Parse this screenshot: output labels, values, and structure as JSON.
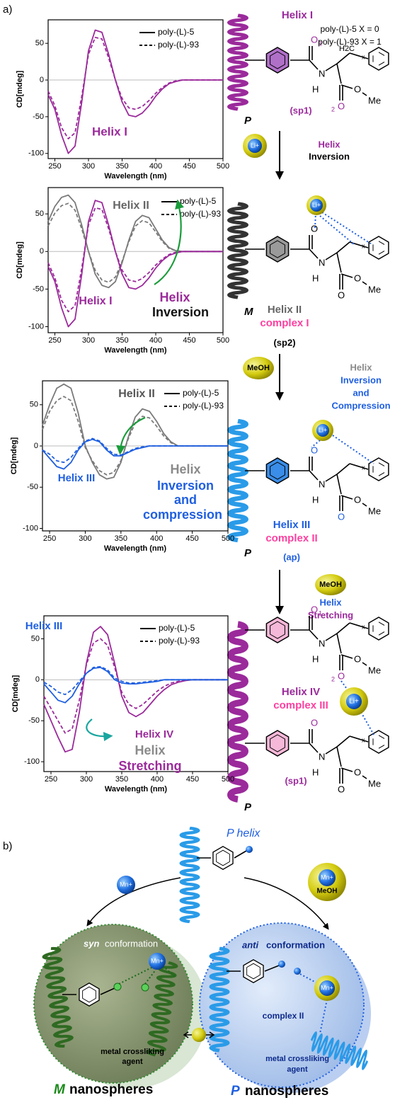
{
  "chart_data": [
    {
      "type": "line",
      "x_label": "Wavelength (nm)",
      "y_label": "CD[mdeg]",
      "x": [
        240,
        250,
        260,
        270,
        280,
        290,
        300,
        310,
        320,
        330,
        340,
        350,
        360,
        370,
        380,
        390,
        400,
        410,
        420,
        430,
        440,
        450,
        460,
        470,
        480,
        490,
        500
      ],
      "xlim": [
        240,
        500
      ],
      "xticks": [
        250,
        300,
        350,
        400,
        450,
        500
      ],
      "ylim": [
        -107,
        82
      ],
      "yticks": [
        -100,
        -50,
        0,
        50
      ],
      "legend": {
        "position": "upper right",
        "entries": [
          {
            "name": "poly-(L)-5",
            "dash": false,
            "color": "#000000"
          },
          {
            "name": "poly-(L)-93",
            "dash": true,
            "color": "#000000"
          }
        ]
      },
      "series": [
        {
          "color": "#9b2a9b",
          "dash": false,
          "values": [
            -20,
            -40,
            -75,
            -100,
            -90,
            -30,
            40,
            68,
            65,
            35,
            0,
            -30,
            -48,
            -50,
            -45,
            -35,
            -22,
            -12,
            -5,
            -2,
            0,
            0,
            0,
            0,
            0,
            0,
            0
          ]
        },
        {
          "color": "#9b2a9b",
          "dash": true,
          "values": [
            -15,
            -35,
            -65,
            -80,
            -72,
            -22,
            35,
            58,
            56,
            30,
            0,
            -25,
            -38,
            -40,
            -36,
            -28,
            -18,
            -10,
            -4,
            -1,
            0,
            0,
            0,
            0,
            0,
            0,
            0
          ]
        }
      ],
      "annotations": [
        {
          "text": "Helix I",
          "color": "#9b2a9b"
        }
      ]
    },
    {
      "type": "line",
      "x_label": "Wavelength (nm)",
      "y_label": "CD[mdeg]",
      "x": [
        240,
        250,
        260,
        270,
        280,
        290,
        300,
        310,
        320,
        330,
        340,
        350,
        360,
        370,
        380,
        390,
        400,
        410,
        420,
        430,
        440,
        450,
        460,
        470,
        480,
        490,
        500
      ],
      "xlim": [
        240,
        500
      ],
      "xticks": [
        250,
        300,
        350,
        400,
        450,
        500
      ],
      "ylim": [
        -108,
        85
      ],
      "yticks": [
        -100,
        -50,
        0,
        50
      ],
      "legend": {
        "position": "upper right",
        "entries": [
          {
            "name": "poly-(L)-5",
            "dash": false,
            "color": "#000000"
          },
          {
            "name": "poly-(L)-93",
            "dash": true,
            "color": "#000000"
          }
        ]
      },
      "series": [
        {
          "color": "#7a7a7a",
          "dash": false,
          "values": [
            40,
            60,
            72,
            75,
            65,
            35,
            0,
            -30,
            -45,
            -48,
            -40,
            -15,
            15,
            40,
            48,
            45,
            30,
            15,
            5,
            1,
            0,
            0,
            0,
            0,
            0,
            0,
            0
          ]
        },
        {
          "color": "#7a7a7a",
          "dash": true,
          "values": [
            34,
            51,
            61,
            64,
            55,
            30,
            0,
            -25,
            -38,
            -41,
            -34,
            -13,
            13,
            34,
            41,
            38,
            26,
            13,
            4,
            1,
            0,
            0,
            0,
            0,
            0,
            0,
            0
          ]
        },
        {
          "color": "#9b2a9b",
          "dash": false,
          "values": [
            -20,
            -40,
            -75,
            -100,
            -90,
            -30,
            40,
            68,
            65,
            35,
            0,
            -30,
            -48,
            -50,
            -45,
            -35,
            -22,
            -12,
            -5,
            -2,
            0,
            0,
            0,
            0,
            0,
            0,
            0
          ]
        },
        {
          "color": "#9b2a9b",
          "dash": true,
          "values": [
            -15,
            -35,
            -65,
            -80,
            -72,
            -22,
            35,
            58,
            56,
            30,
            0,
            -25,
            -38,
            -40,
            -36,
            -28,
            -18,
            -10,
            -4,
            -1,
            0,
            0,
            0,
            0,
            0,
            0,
            0
          ]
        }
      ],
      "annotations": [
        {
          "text": "Helix II",
          "color": "#666666"
        },
        {
          "text": "Helix I",
          "color": "#9b2a9b"
        },
        {
          "text": "Helix",
          "color": "#9b2a9b"
        },
        {
          "text": "Inversion",
          "color": "#111111"
        }
      ]
    },
    {
      "type": "line",
      "x_label": "Wavelength (nm)",
      "y_label": "CD[mdeg]",
      "x": [
        240,
        250,
        260,
        270,
        280,
        290,
        300,
        310,
        320,
        330,
        340,
        350,
        360,
        370,
        380,
        390,
        400,
        410,
        420,
        430,
        440,
        450,
        460,
        470,
        480,
        490,
        500
      ],
      "xlim": [
        240,
        500
      ],
      "xticks": [
        250,
        300,
        350,
        400,
        450,
        500
      ],
      "ylim": [
        -103,
        79
      ],
      "yticks": [
        -100,
        -50,
        0,
        50
      ],
      "legend": {
        "position": "upper right",
        "entries": [
          {
            "name": "poly-(L)-5",
            "dash": false,
            "color": "#000000"
          },
          {
            "name": "poly-(L)-93",
            "dash": true,
            "color": "#000000"
          }
        ]
      },
      "series": [
        {
          "color": "#7a7a7a",
          "dash": false,
          "values": [
            25,
            50,
            70,
            75,
            70,
            40,
            0,
            -20,
            -35,
            -40,
            -38,
            -20,
            10,
            35,
            45,
            42,
            30,
            15,
            5,
            0,
            0,
            0,
            0,
            0,
            0,
            0,
            0
          ]
        },
        {
          "color": "#7a7a7a",
          "dash": true,
          "values": [
            20,
            42,
            55,
            60,
            55,
            30,
            -2,
            -18,
            -30,
            -35,
            -32,
            -18,
            8,
            28,
            36,
            34,
            24,
            12,
            4,
            0,
            0,
            0,
            0,
            0,
            0,
            0,
            0
          ]
        },
        {
          "color": "#1f5fe0",
          "dash": false,
          "values": [
            -5,
            -15,
            -25,
            -28,
            -20,
            -5,
            5,
            8,
            5,
            -5,
            -12,
            -12,
            -8,
            -4,
            -2,
            0,
            0,
            0,
            0,
            0,
            0,
            0,
            0,
            0,
            0,
            0,
            0
          ]
        },
        {
          "color": "#1f5fe0",
          "dash": true,
          "values": [
            -5,
            -10,
            -18,
            -20,
            -14,
            -3,
            6,
            9,
            6,
            -3,
            -10,
            -11,
            -7,
            -3,
            -1,
            0,
            0,
            0,
            0,
            0,
            0,
            0,
            0,
            0,
            0,
            0,
            0
          ]
        }
      ],
      "annotations": [
        {
          "text": "Helix II",
          "color": "#555555"
        },
        {
          "text": "Helix III",
          "color": "#1f5fe0"
        },
        {
          "text": "Helix",
          "color": "#8a8a8a"
        },
        {
          "text": "Inversion",
          "color": "#1f5fe0"
        },
        {
          "text": "and",
          "color": "#1f5fe0"
        },
        {
          "text": "compression",
          "color": "#1f5fe0"
        }
      ]
    },
    {
      "type": "line",
      "x_label": "Wavelength (nm)",
      "y_label": "CD[mdeg]",
      "x": [
        240,
        250,
        260,
        270,
        280,
        290,
        300,
        310,
        320,
        330,
        340,
        350,
        360,
        370,
        380,
        390,
        400,
        410,
        420,
        430,
        440,
        450,
        460,
        470,
        480,
        490,
        500
      ],
      "xlim": [
        240,
        500
      ],
      "xticks": [
        250,
        300,
        350,
        400,
        450,
        500
      ],
      "ylim": [
        -112,
        78
      ],
      "yticks": [
        -100,
        -50,
        0,
        50
      ],
      "legend": {
        "position": "upper right",
        "entries": [
          {
            "name": "poly-(L)-5",
            "dash": false,
            "color": "#000000"
          },
          {
            "name": "poly-(L)-93",
            "dash": true,
            "color": "#000000"
          }
        ]
      },
      "series": [
        {
          "color": "#9b2a9b",
          "dash": false,
          "values": [
            -30,
            -50,
            -70,
            -88,
            -85,
            -40,
            20,
            58,
            65,
            55,
            20,
            -20,
            -40,
            -45,
            -40,
            -30,
            -20,
            -12,
            -6,
            -3,
            -1,
            0,
            0,
            0,
            0,
            0,
            0
          ]
        },
        {
          "color": "#9b2a9b",
          "dash": true,
          "values": [
            -20,
            -35,
            -50,
            -65,
            -60,
            -25,
            18,
            45,
            50,
            42,
            15,
            -15,
            -30,
            -35,
            -30,
            -22,
            -14,
            -8,
            -4,
            -2,
            0,
            0,
            0,
            0,
            0,
            0,
            0
          ]
        },
        {
          "color": "#1f5fe0",
          "dash": false,
          "values": [
            -5,
            -15,
            -25,
            -28,
            -20,
            -5,
            8,
            14,
            15,
            10,
            0,
            -4,
            -5,
            -5,
            -4,
            -3,
            -2,
            0,
            0,
            0,
            0,
            0,
            0,
            0,
            0,
            0,
            0
          ]
        },
        {
          "color": "#1f5fe0",
          "dash": true,
          "values": [
            -3,
            -8,
            -15,
            -18,
            -12,
            -2,
            8,
            15,
            16,
            12,
            2,
            -2,
            -4,
            -4,
            -3,
            -2,
            -1,
            0,
            0,
            0,
            0,
            0,
            0,
            0,
            0,
            0,
            0
          ]
        }
      ],
      "annotations": [
        {
          "text": "Helix III",
          "color": "#1f5fe0"
        },
        {
          "text": "Helix IV",
          "color": "#9b2a9b"
        },
        {
          "text": "Helix",
          "color": "#8a8a8a"
        },
        {
          "text": "Stretching",
          "color": "#9b2a9b"
        }
      ]
    }
  ],
  "figure": {
    "panel_labels": [
      "a)",
      "b)"
    ],
    "stage1": {
      "title": "Helix I",
      "legend": [
        "poly-(L)-5 X = 0",
        "poly-(L)-93 X = 1"
      ],
      "handedness": "P",
      "conformation": "(sp1)",
      "atoms": [
        "O",
        "1",
        "N",
        "H",
        "O",
        "2",
        "O",
        "Me",
        "H2C",
        "x"
      ]
    },
    "step1": {
      "reagent": "Li+",
      "label": [
        "Helix",
        "Inversion"
      ]
    },
    "stage2": {
      "title": "Helix II",
      "complex": "complex I",
      "handedness": "M",
      "conformation": "(sp2)",
      "reagent": "Li+",
      "atoms": [
        "O",
        "N",
        "H",
        "O",
        "O",
        "Me",
        "x"
      ]
    },
    "step2": {
      "reagent": "MeOH",
      "label": [
        "Helix",
        "Inversion",
        "and",
        "Compression"
      ]
    },
    "stage3": {
      "title": "Helix III",
      "complex": "complex II",
      "handedness": "P",
      "conformation": "(ap)",
      "reagent": "Li+",
      "atoms": [
        "O",
        "N",
        "H",
        "O",
        "O",
        "Me",
        "x"
      ]
    },
    "step3": {
      "reagent": "MeOH",
      "label": [
        "Helix",
        "Stretching"
      ]
    },
    "stage4": {
      "title": "Helix IV",
      "complex": "complex III",
      "handedness": "P",
      "conformation": "(sp1)",
      "reagent": "Li+",
      "atoms_upper": [
        "O",
        "1",
        "N",
        "H",
        "O",
        "2",
        "O",
        "Me",
        "x"
      ],
      "atoms_lower": [
        "O",
        "N",
        "H",
        "O",
        "O",
        "Me",
        "x"
      ]
    },
    "panel_b": {
      "helix": "P helix",
      "left_reagent": "Mn+",
      "right_reagent": [
        "Mn+",
        "MeOH"
      ],
      "left_sphere": {
        "conformation": [
          "syn",
          "conformation"
        ],
        "reagent": "Mn+",
        "agent": [
          "metal crossliking",
          "agent"
        ]
      },
      "right_sphere": {
        "conformation": [
          "anti",
          "conformation"
        ],
        "reagent": "Mn+",
        "complex": "complex II",
        "agent": [
          "metal crossliking",
          "agent"
        ]
      },
      "captions": [
        [
          "M",
          "nanospheres"
        ],
        [
          "P",
          "nanospheres"
        ]
      ]
    }
  }
}
